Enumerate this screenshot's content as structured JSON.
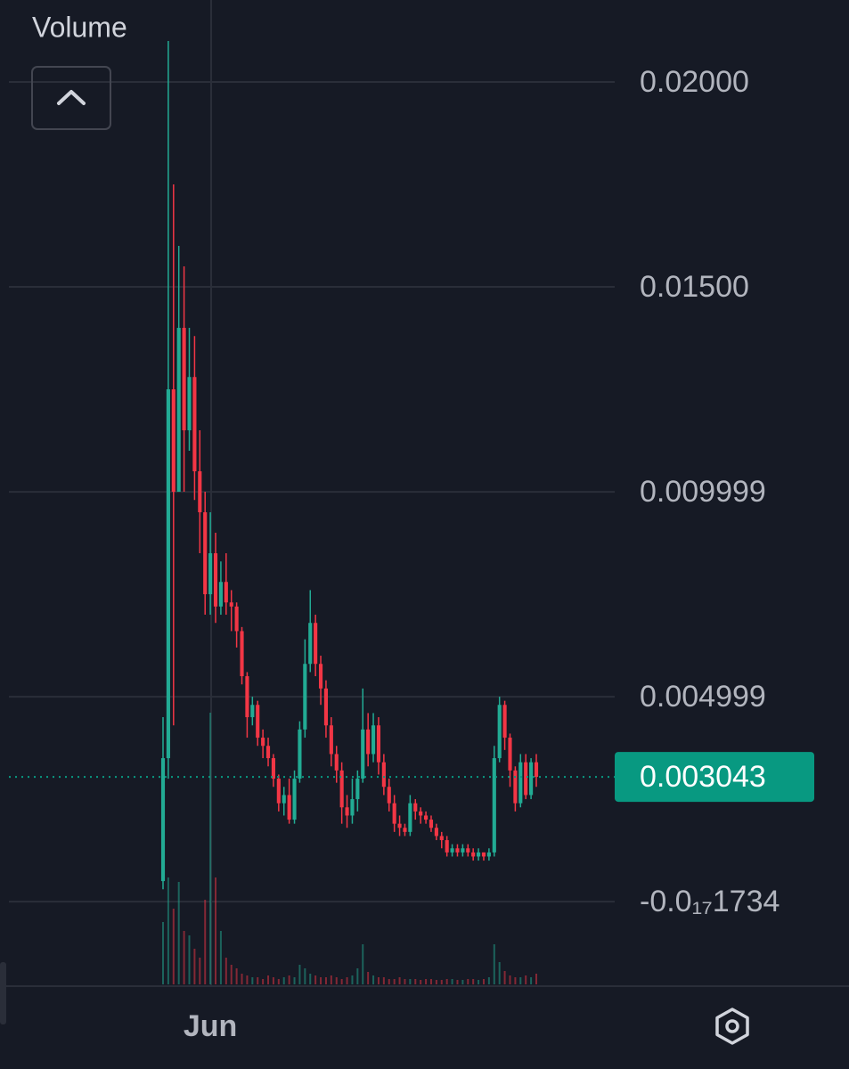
{
  "chart_data": {
    "type": "candlestick",
    "volume_title": "Volume",
    "up_color": "#22ab94",
    "down_color": "#f23645",
    "grid": true,
    "categories": [
      null,
      null,
      null,
      null,
      null,
      null,
      null,
      null,
      null,
      "Jun",
      null,
      null,
      null,
      null,
      null,
      null,
      null,
      null,
      null,
      null,
      null,
      null,
      null,
      null,
      null,
      null,
      null,
      null,
      null,
      null,
      null,
      null,
      null,
      null,
      null,
      null,
      null,
      null,
      null,
      null,
      null,
      null,
      null,
      null,
      null,
      null,
      null,
      null,
      null,
      null,
      null,
      null,
      null,
      null,
      null,
      null,
      null,
      null,
      null,
      null,
      null,
      null,
      null,
      null,
      null,
      null,
      null,
      null,
      null,
      null,
      null,
      null
    ],
    "open": [
      0.0005,
      0.0035,
      0.0125,
      0.01,
      0.014,
      0.0115,
      0.0128,
      0.0105,
      0.0095,
      0.0075,
      0.0085,
      0.0072,
      0.0078,
      0.0073,
      0.0072,
      0.0066,
      0.0055,
      0.0045,
      0.0048,
      0.004,
      0.0038,
      0.0035,
      0.003,
      0.0024,
      0.0026,
      0.002,
      0.003,
      0.0042,
      0.0058,
      0.0068,
      0.0058,
      0.0052,
      0.0043,
      0.0036,
      0.0032,
      0.0023,
      0.0021,
      0.0025,
      0.003,
      0.0042,
      0.0036,
      0.0043,
      0.0034,
      0.0028,
      0.0024,
      0.0019,
      0.0018,
      0.0017,
      0.0024,
      0.0022,
      0.0021,
      0.002,
      0.0018,
      0.0016,
      0.0015,
      0.0012,
      0.0013,
      0.0012,
      0.0013,
      0.0012,
      0.0011,
      0.0012,
      0.0011,
      0.0012,
      0.0035,
      0.0048,
      0.004,
      0.0032,
      0.0024,
      0.0034,
      0.0026,
      0.0034
    ],
    "high": [
      0.0045,
      0.021,
      0.0175,
      0.016,
      0.0155,
      0.014,
      0.0138,
      0.0115,
      0.01,
      0.0095,
      0.009,
      0.0083,
      0.0085,
      0.0076,
      0.0073,
      0.0067,
      0.0056,
      0.005,
      0.0049,
      0.0042,
      0.004,
      0.0036,
      0.0031,
      0.0028,
      0.003,
      0.0032,
      0.0044,
      0.0064,
      0.0076,
      0.007,
      0.006,
      0.0054,
      0.0045,
      0.0038,
      0.0034,
      0.0026,
      0.003,
      0.0032,
      0.0052,
      0.0046,
      0.0046,
      0.0045,
      0.0036,
      0.003,
      0.0026,
      0.0021,
      0.0019,
      0.0026,
      0.0025,
      0.0023,
      0.0022,
      0.0021,
      0.0019,
      0.0017,
      0.0016,
      0.0014,
      0.0014,
      0.0014,
      0.0014,
      0.0013,
      0.0013,
      0.0012,
      0.0013,
      0.0038,
      0.005,
      0.0049,
      0.0041,
      0.0033,
      0.0036,
      0.0036,
      0.0035,
      0.0036
    ],
    "low": [
      0.0003,
      0.003,
      0.0043,
      0.01,
      0.01,
      0.011,
      0.0098,
      0.0085,
      0.007,
      0.007,
      0.0068,
      0.007,
      0.007,
      0.0066,
      0.0062,
      0.0053,
      0.004,
      0.0043,
      0.0038,
      0.0035,
      0.0033,
      0.0028,
      0.0022,
      0.0021,
      0.0019,
      0.0019,
      0.0029,
      0.004,
      0.0056,
      0.0055,
      0.0048,
      0.004,
      0.0033,
      0.0029,
      0.0019,
      0.0018,
      0.0019,
      0.0022,
      0.0029,
      0.0033,
      0.0034,
      0.0031,
      0.0026,
      0.0022,
      0.0017,
      0.0016,
      0.0016,
      0.0016,
      0.002,
      0.0019,
      0.0019,
      0.0017,
      0.0015,
      0.0013,
      0.0011,
      0.0011,
      0.0011,
      0.0011,
      0.0011,
      0.001,
      0.001,
      0.001,
      0.001,
      0.0011,
      0.0034,
      0.0037,
      0.0028,
      0.0022,
      0.0023,
      0.0025,
      0.0025,
      0.0028
    ],
    "close": [
      0.0035,
      0.0125,
      0.01,
      0.014,
      0.0115,
      0.0128,
      0.0105,
      0.0095,
      0.0075,
      0.0085,
      0.0072,
      0.0078,
      0.0073,
      0.0072,
      0.0066,
      0.0055,
      0.0045,
      0.0048,
      0.004,
      0.0038,
      0.0035,
      0.003,
      0.0024,
      0.0026,
      0.002,
      0.003,
      0.0042,
      0.0058,
      0.0068,
      0.0058,
      0.0052,
      0.0043,
      0.0036,
      0.0032,
      0.0023,
      0.0021,
      0.0025,
      0.003,
      0.0042,
      0.0036,
      0.0043,
      0.0034,
      0.0028,
      0.0024,
      0.0019,
      0.0018,
      0.0017,
      0.0024,
      0.0022,
      0.0021,
      0.002,
      0.0018,
      0.0016,
      0.0015,
      0.0012,
      0.0013,
      0.0012,
      0.0013,
      0.0012,
      0.0011,
      0.0012,
      0.0011,
      0.0012,
      0.0035,
      0.0048,
      0.004,
      0.0032,
      0.0024,
      0.0034,
      0.0026,
      0.0034,
      0.003043
    ],
    "volume": [
      70,
      120,
      85,
      115,
      60,
      55,
      40,
      30,
      95,
      305,
      120,
      60,
      30,
      22,
      18,
      12,
      10,
      8,
      8,
      6,
      10,
      8,
      6,
      8,
      10,
      8,
      22,
      18,
      12,
      10,
      8,
      8,
      10,
      8,
      6,
      8,
      10,
      18,
      45,
      14,
      10,
      8,
      8,
      6,
      6,
      8,
      6,
      6,
      6,
      5,
      6,
      6,
      5,
      5,
      6,
      6,
      5,
      5,
      6,
      6,
      5,
      6,
      8,
      45,
      25,
      15,
      10,
      8,
      8,
      10,
      8,
      12
    ],
    "last_price": 0.003043,
    "last_price_color": "#089981",
    "ylim": [
      -0.00202,
      0.022
    ],
    "yticks": [
      {
        "value": 0.02,
        "label": "0.02000"
      },
      {
        "value": 0.015,
        "label": "0.01500"
      },
      0.009999,
      0.004999,
      {
        "value": -1.734e-18,
        "label": "-0.0₁₇1734"
      }
    ]
  }
}
